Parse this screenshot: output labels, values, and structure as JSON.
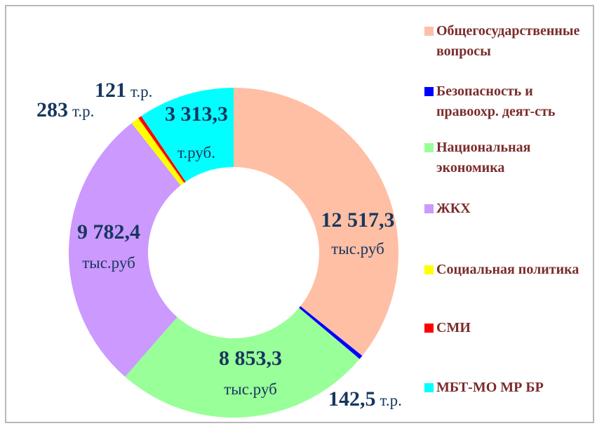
{
  "chart_data": {
    "type": "donut",
    "categories": [
      "Общегосударственные вопросы",
      "Безопасность и правоохр. деят-сть",
      "Национальная экономика",
      "ЖКХ",
      "Социальная политика",
      "СМИ",
      "МБТ-МО МР БР"
    ],
    "values": [
      12517.3,
      142.5,
      8853.3,
      9782.4,
      283,
      121,
      3313.3
    ],
    "value_labels": [
      "12 517,3",
      "142,5",
      "8 853,3",
      "9 782,4",
      "283",
      "121",
      "3 313,3"
    ],
    "value_units": [
      "тыс.руб",
      "т.р.",
      "тыс.руб",
      "тыс.руб",
      "т.р.",
      "т.р.",
      "т.руб."
    ],
    "colors": [
      "#ffbfa5",
      "#0000ff",
      "#99ff99",
      "#cc99ff",
      "#ffff00",
      "#ff0000",
      "#00ffff"
    ],
    "legend": "right"
  }
}
